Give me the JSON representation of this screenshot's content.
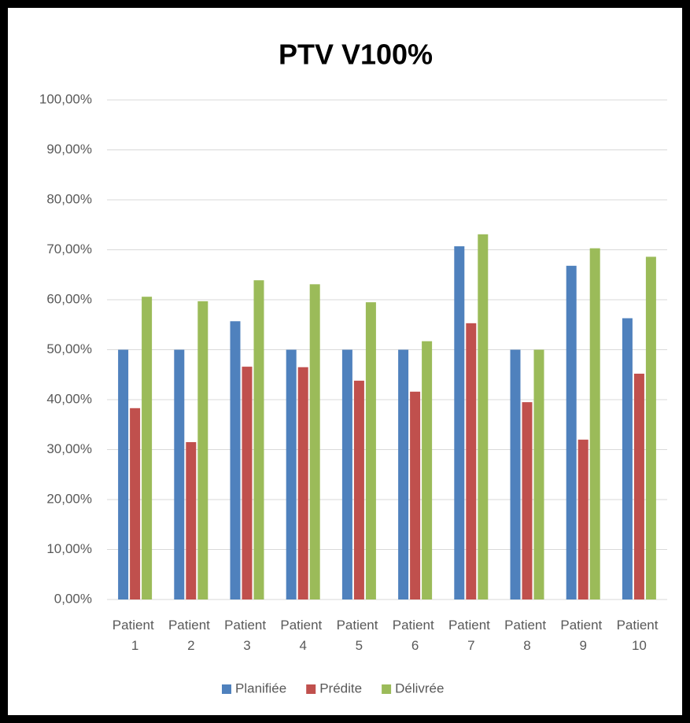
{
  "chart_data": {
    "type": "bar",
    "title": "PTV V100%",
    "categories": [
      "Patient 1",
      "Patient 2",
      "Patient 3",
      "Patient 4",
      "Patient 5",
      "Patient 6",
      "Patient 7",
      "Patient 8",
      "Patient 9",
      "Patient 10"
    ],
    "series": [
      {
        "name": "Planifiée",
        "color": "#4f81bd",
        "values": [
          50,
          50,
          55.7,
          50,
          50,
          50,
          70.7,
          50,
          66.8,
          56.3
        ]
      },
      {
        "name": "Prédite",
        "color": "#c0504d",
        "values": [
          38.3,
          31.5,
          46.6,
          46.5,
          43.8,
          41.6,
          55.3,
          39.5,
          32,
          45.2
        ]
      },
      {
        "name": "Délivrée",
        "color": "#9bbb59",
        "values": [
          60.6,
          59.7,
          63.9,
          63.1,
          59.5,
          51.7,
          73.1,
          50,
          70.3,
          68.6
        ]
      }
    ],
    "ylim": [
      0,
      100
    ],
    "yticks": [
      {
        "value": 0,
        "label": "0,00%"
      },
      {
        "value": 10,
        "label": "10,00%"
      },
      {
        "value": 20,
        "label": "20,00%"
      },
      {
        "value": 30,
        "label": "30,00%"
      },
      {
        "value": 40,
        "label": "40,00%"
      },
      {
        "value": 50,
        "label": "50,00%"
      },
      {
        "value": 60,
        "label": "60,00%"
      },
      {
        "value": 70,
        "label": "70,00%"
      },
      {
        "value": 80,
        "label": "80,00%"
      },
      {
        "value": 90,
        "label": "90,00%"
      },
      {
        "value": 100,
        "label": "100,00%"
      }
    ],
    "grid": true,
    "legend": "bottom"
  }
}
